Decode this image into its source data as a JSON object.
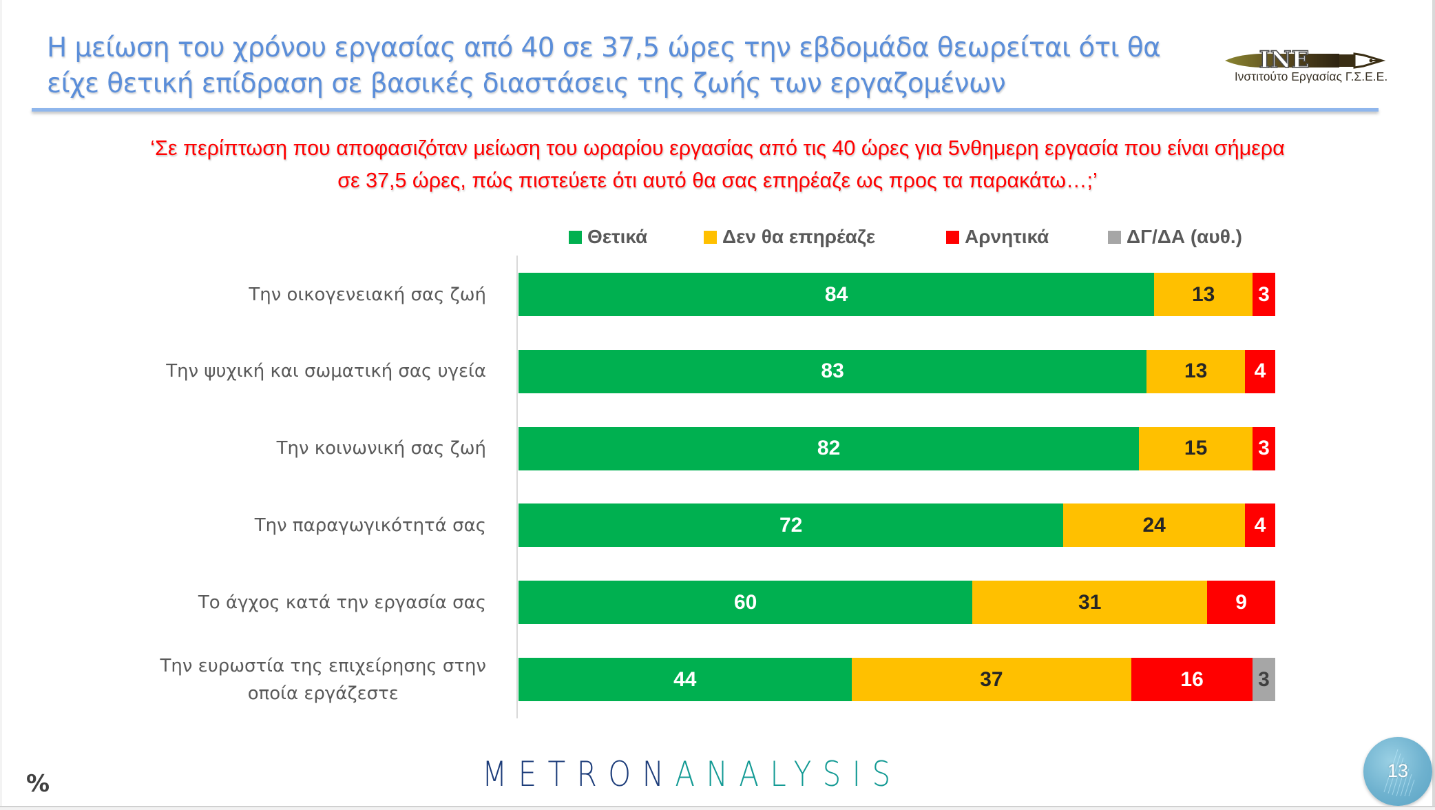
{
  "header": {
    "title_lines": [
      "Η μείωση του χρόνου εργασίας από 40 σε 37,5 ώρες την εβδομάδα θεωρείται ότι θα",
      "είχε θετική επίδραση σε βασικές διαστάσεις της ζωής των εργαζομένων"
    ],
    "logo_text": "INE",
    "logo_caption": "Ινστιτούτο Εργασίας Γ.Σ.Ε.Ε."
  },
  "question_lines": [
    "‘Σε περίπτωση που αποφασιζόταν μείωση του ωραρίου εργασίας από τις 40 ώρες για 5νθημερη εργασία που είναι σήμερα",
    "σε 37,5 ώρες, πώς πιστεύετε ότι αυτό θα σας επηρέαζε ως προς τα παρακάτω…;’"
  ],
  "chart_data": {
    "type": "bar",
    "orientation": "horizontal",
    "stacked": true,
    "unit": "%",
    "xlim": [
      0,
      100
    ],
    "legend_position": "top",
    "grid": false,
    "categories": [
      [
        "Την οικογενειακή σας ζωή"
      ],
      [
        "Την ψυχική και σωματική σας υγεία"
      ],
      [
        "Την κοινωνική σας ζωή"
      ],
      [
        "Την παραγωγικότητά σας"
      ],
      [
        "Το άγχος κατά την εργασία σας"
      ],
      [
        "Την ευρωστία της επιχείρησης στην",
        "οποία εργάζεστε"
      ]
    ],
    "series": [
      {
        "name": "Θετικά",
        "color": "#00b050",
        "label_color": "#ffffff",
        "values": [
          84,
          83,
          82,
          72,
          60,
          44
        ]
      },
      {
        "name": "Δεν θα επηρέαζε",
        "color": "#ffc000",
        "label_color": "#262626",
        "values": [
          13,
          13,
          15,
          24,
          31,
          37
        ]
      },
      {
        "name": "Αρνητικά",
        "color": "#ff0000",
        "label_color": "#ffffff",
        "values": [
          3,
          4,
          3,
          4,
          9,
          16
        ]
      },
      {
        "name": "ΔΓ/ΔΑ (αυθ.)",
        "color": "#a6a6a6",
        "label_color": "#404040",
        "values": [
          null,
          null,
          null,
          null,
          null,
          3
        ]
      }
    ]
  },
  "footer": {
    "unit_label": "%",
    "brand_part1": "METRON",
    "brand_part2": "ANALYSIS",
    "page_number": "13"
  }
}
